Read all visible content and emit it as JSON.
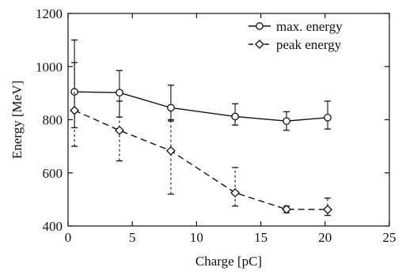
{
  "chart_data": {
    "type": "line",
    "title": "",
    "xlabel": "Charge [pC]",
    "ylabel": "Energy [MeV]",
    "xlim": [
      0,
      25
    ],
    "ylim": [
      400,
      1200
    ],
    "xticks": [
      0,
      5,
      10,
      15,
      20,
      25
    ],
    "yticks": [
      400,
      600,
      800,
      1000,
      1200
    ],
    "x_tick_labels": [
      "0",
      "5",
      "10",
      "15",
      "20",
      "25"
    ],
    "y_tick_labels": [
      "400",
      "600",
      "800",
      "1000",
      "1200"
    ],
    "grid": false,
    "legend_position": "top-right",
    "series": [
      {
        "name": "max. energy",
        "line_style": "solid",
        "marker": "circle",
        "color": "#111111",
        "x": [
          0.5,
          4,
          8,
          13,
          17,
          20.2
        ],
        "y": [
          905,
          902,
          845,
          812,
          795,
          808
        ],
        "err_low": [
          770,
          810,
          795,
          780,
          760,
          765
        ],
        "err_high": [
          1100,
          985,
          930,
          860,
          830,
          870
        ]
      },
      {
        "name": "peak energy",
        "line_style": "dashed",
        "marker": "diamond",
        "color": "#111111",
        "x": [
          0.5,
          4,
          8,
          13,
          17,
          20.2
        ],
        "y": [
          835,
          760,
          683,
          525,
          463,
          462
        ],
        "err_low": [
          700,
          645,
          520,
          475,
          450,
          440
        ],
        "err_high": [
          1015,
          870,
          800,
          620,
          475,
          505
        ]
      }
    ]
  }
}
